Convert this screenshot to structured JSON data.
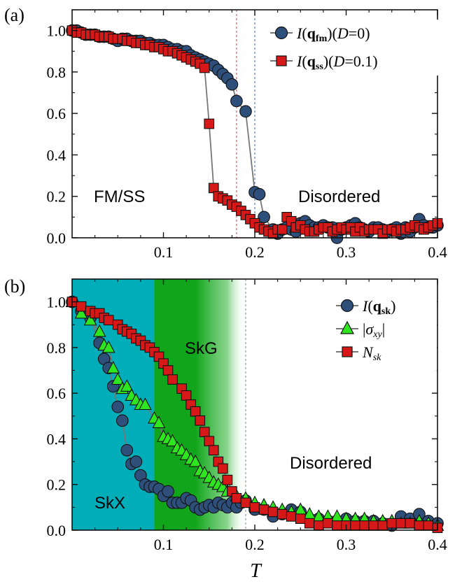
{
  "figure": {
    "xlabel": "T",
    "colors": {
      "circle_fill": "#2e4f7a",
      "square_fill": "#d61818",
      "triangle_fill": "#2ee51f",
      "line": "#777777",
      "skx_region": "#00adb8",
      "skg_region": "#11a51b",
      "vline_red": "#e05a5a",
      "vline_blue": "#5a7fc0",
      "vline_gray": "#9a9a9a"
    }
  },
  "chart_data": [
    {
      "type": "line",
      "panel_label": "(a)",
      "xlim": [
        0.0,
        0.4
      ],
      "ylim": [
        0.0,
        1.1
      ],
      "x_ticks": [
        0.1,
        0.2,
        0.3,
        0.4
      ],
      "y_ticks": [
        0.0,
        0.2,
        0.4,
        0.6,
        0.8,
        1.0
      ],
      "x_tick_labels": [
        "0.1",
        "0.2",
        "0.3",
        "0.4"
      ],
      "y_tick_labels": [
        "0.0",
        "0.2",
        "0.4",
        "0.6",
        "0.8",
        "1.0"
      ],
      "legend_position": "top-right",
      "vlines": [
        0.18,
        0.2
      ],
      "region_labels": [
        "FM/SS",
        "Disordered"
      ],
      "series": [
        {
          "name": "I(q_fm)(D=0)",
          "marker": "circle",
          "x": [
            0.0,
            0.005,
            0.01,
            0.015,
            0.02,
            0.025,
            0.03,
            0.035,
            0.04,
            0.045,
            0.05,
            0.055,
            0.06,
            0.065,
            0.07,
            0.075,
            0.08,
            0.085,
            0.09,
            0.095,
            0.1,
            0.105,
            0.11,
            0.115,
            0.12,
            0.125,
            0.13,
            0.135,
            0.14,
            0.145,
            0.15,
            0.155,
            0.16,
            0.165,
            0.17,
            0.175,
            0.18,
            0.19,
            0.2,
            0.205,
            0.21,
            0.22,
            0.225,
            0.23,
            0.235,
            0.24,
            0.245,
            0.25,
            0.255,
            0.26,
            0.265,
            0.27,
            0.275,
            0.28,
            0.285,
            0.29,
            0.295,
            0.3,
            0.305,
            0.31,
            0.315,
            0.32,
            0.325,
            0.33,
            0.335,
            0.34,
            0.345,
            0.35,
            0.355,
            0.36,
            0.365,
            0.37,
            0.375,
            0.38,
            0.385,
            0.39,
            0.395,
            0.4
          ],
          "y": [
            1.0,
            1.0,
            0.99,
            0.98,
            0.98,
            0.98,
            0.97,
            0.97,
            0.97,
            0.96,
            0.95,
            0.96,
            0.96,
            0.95,
            0.95,
            0.95,
            0.94,
            0.94,
            0.93,
            0.93,
            0.93,
            0.92,
            0.91,
            0.91,
            0.9,
            0.9,
            0.88,
            0.87,
            0.86,
            0.85,
            0.84,
            0.83,
            0.81,
            0.79,
            0.77,
            0.74,
            0.66,
            0.61,
            0.22,
            0.21,
            0.1,
            0.04,
            0.02,
            0.04,
            0.05,
            0.04,
            0.03,
            0.07,
            0.08,
            0.06,
            0.05,
            0.05,
            0.06,
            0.05,
            0.05,
            0.0,
            0.04,
            0.05,
            0.06,
            0.07,
            0.05,
            0.04,
            0.03,
            0.05,
            0.05,
            0.04,
            0.03,
            0.04,
            0.05,
            0.02,
            0.05,
            0.03,
            0.05,
            0.09,
            0.06,
            0.05,
            0.05,
            0.06
          ]
        },
        {
          "name": "I(q_ss)(D=0.1)",
          "marker": "square",
          "x": [
            0.0,
            0.005,
            0.01,
            0.015,
            0.02,
            0.025,
            0.03,
            0.035,
            0.04,
            0.045,
            0.05,
            0.055,
            0.06,
            0.065,
            0.07,
            0.075,
            0.08,
            0.085,
            0.09,
            0.095,
            0.1,
            0.105,
            0.11,
            0.115,
            0.12,
            0.125,
            0.13,
            0.135,
            0.14,
            0.145,
            0.15,
            0.155,
            0.16,
            0.165,
            0.17,
            0.175,
            0.18,
            0.185,
            0.19,
            0.195,
            0.2,
            0.205,
            0.21,
            0.215,
            0.22,
            0.225,
            0.23,
            0.235,
            0.24,
            0.245,
            0.25,
            0.255,
            0.26,
            0.265,
            0.27,
            0.275,
            0.28,
            0.285,
            0.29,
            0.295,
            0.3,
            0.305,
            0.31,
            0.315,
            0.32,
            0.325,
            0.33,
            0.335,
            0.34,
            0.345,
            0.35,
            0.355,
            0.36,
            0.365,
            0.37,
            0.375,
            0.38,
            0.385,
            0.39,
            0.395,
            0.4
          ],
          "y": [
            1.0,
            0.99,
            0.99,
            0.98,
            0.98,
            0.98,
            0.97,
            0.97,
            0.97,
            0.96,
            0.96,
            0.96,
            0.95,
            0.95,
            0.94,
            0.94,
            0.93,
            0.93,
            0.92,
            0.92,
            0.91,
            0.9,
            0.9,
            0.89,
            0.88,
            0.87,
            0.86,
            0.85,
            0.84,
            0.82,
            0.55,
            0.24,
            0.2,
            0.19,
            0.18,
            0.16,
            0.15,
            0.13,
            0.11,
            0.09,
            0.07,
            0.05,
            0.04,
            0.03,
            0.02,
            0.04,
            0.04,
            0.1,
            0.08,
            0.05,
            0.06,
            0.04,
            0.03,
            0.03,
            0.04,
            0.05,
            0.05,
            0.03,
            0.04,
            0.05,
            0.04,
            0.05,
            0.03,
            0.05,
            0.03,
            0.04,
            0.04,
            0.04,
            0.02,
            0.04,
            0.04,
            0.03,
            0.04,
            0.04,
            0.05,
            0.06,
            0.05,
            0.04,
            0.05,
            0.06,
            0.07
          ]
        }
      ]
    },
    {
      "type": "line",
      "panel_label": "(b)",
      "xlim": [
        0.0,
        0.4
      ],
      "ylim": [
        0.0,
        1.1
      ],
      "x_ticks": [
        0.1,
        0.2,
        0.3,
        0.4
      ],
      "y_ticks": [
        0.0,
        0.2,
        0.4,
        0.6,
        0.8,
        1.0
      ],
      "x_tick_labels": [
        "0.1",
        "0.2",
        "0.3",
        "0.4"
      ],
      "y_tick_labels": [
        "0.0",
        "0.2",
        "0.4",
        "0.6",
        "0.8",
        "1.0"
      ],
      "xlabel": "T",
      "legend_position": "top-right",
      "vlines": [
        0.19
      ],
      "regions": [
        {
          "name": "SkX",
          "x_range": [
            0.0,
            0.09
          ]
        },
        {
          "name": "SkG",
          "x_range": [
            0.09,
            0.19
          ]
        }
      ],
      "region_labels": [
        "SkX",
        "SkG",
        "Disordered"
      ],
      "series": [
        {
          "name": "I(q_sk)",
          "marker": "circle",
          "x": [
            0.0,
            0.01,
            0.02,
            0.03,
            0.035,
            0.04,
            0.045,
            0.05,
            0.055,
            0.06,
            0.065,
            0.07,
            0.075,
            0.08,
            0.085,
            0.09,
            0.095,
            0.1,
            0.105,
            0.11,
            0.115,
            0.12,
            0.125,
            0.13,
            0.135,
            0.14,
            0.145,
            0.15,
            0.155,
            0.16,
            0.165,
            0.17,
            0.175,
            0.18,
            0.185,
            0.19,
            0.2,
            0.21,
            0.22,
            0.23,
            0.24,
            0.25,
            0.26,
            0.27,
            0.28,
            0.29,
            0.3,
            0.31,
            0.32,
            0.33,
            0.34,
            0.35,
            0.36,
            0.37,
            0.38,
            0.39,
            0.4
          ],
          "y": [
            1.0,
            0.96,
            0.93,
            0.82,
            0.75,
            0.71,
            0.63,
            0.54,
            0.48,
            0.35,
            0.29,
            0.3,
            0.24,
            0.2,
            0.19,
            0.19,
            0.18,
            0.15,
            0.17,
            0.12,
            0.12,
            0.12,
            0.14,
            0.13,
            0.1,
            0.09,
            0.1,
            0.11,
            0.1,
            0.12,
            0.11,
            0.1,
            0.12,
            0.1,
            0.12,
            0.13,
            0.09,
            0.09,
            0.06,
            0.07,
            0.09,
            0.08,
            0.05,
            0.05,
            0.04,
            0.04,
            0.05,
            0.04,
            0.04,
            0.04,
            0.03,
            0.02,
            0.06,
            0.05,
            0.07,
            0.04,
            0.03
          ]
        },
        {
          "name": "|σ_xy|",
          "marker": "triangle",
          "x": [
            0.0,
            0.01,
            0.02,
            0.03,
            0.035,
            0.04,
            0.045,
            0.05,
            0.055,
            0.06,
            0.065,
            0.07,
            0.075,
            0.08,
            0.09,
            0.095,
            0.1,
            0.105,
            0.11,
            0.115,
            0.12,
            0.125,
            0.13,
            0.135,
            0.14,
            0.145,
            0.15,
            0.155,
            0.16,
            0.165,
            0.17,
            0.18,
            0.19,
            0.2,
            0.21,
            0.22,
            0.23,
            0.24,
            0.25,
            0.26,
            0.27,
            0.28,
            0.29,
            0.3,
            0.31,
            0.32,
            0.33,
            0.34,
            0.35,
            0.36,
            0.37,
            0.38,
            0.39,
            0.4
          ],
          "y": [
            1.0,
            0.95,
            0.92,
            0.87,
            0.81,
            0.8,
            0.71,
            0.66,
            0.62,
            0.63,
            0.59,
            0.57,
            0.55,
            0.55,
            0.49,
            0.47,
            0.41,
            0.4,
            0.39,
            0.36,
            0.35,
            0.33,
            0.31,
            0.3,
            0.26,
            0.25,
            0.23,
            0.21,
            0.2,
            0.19,
            0.17,
            0.15,
            0.14,
            0.12,
            0.11,
            0.1,
            0.09,
            0.08,
            0.09,
            0.07,
            0.06,
            0.06,
            0.06,
            0.05,
            0.05,
            0.05,
            0.04,
            0.04,
            0.04,
            0.03,
            0.03,
            0.04,
            0.03,
            0.02
          ]
        },
        {
          "name": "N_sk",
          "marker": "square",
          "x": [
            0.0,
            0.01,
            0.02,
            0.025,
            0.03,
            0.035,
            0.04,
            0.05,
            0.055,
            0.06,
            0.065,
            0.07,
            0.075,
            0.08,
            0.085,
            0.09,
            0.095,
            0.1,
            0.105,
            0.11,
            0.12,
            0.125,
            0.13,
            0.135,
            0.14,
            0.145,
            0.15,
            0.155,
            0.16,
            0.165,
            0.17,
            0.175,
            0.18,
            0.19,
            0.2,
            0.21,
            0.22,
            0.23,
            0.24,
            0.25,
            0.26,
            0.27,
            0.28,
            0.29,
            0.3,
            0.31,
            0.32,
            0.33,
            0.34,
            0.35,
            0.36,
            0.37,
            0.38,
            0.39,
            0.4
          ],
          "y": [
            1.0,
            0.98,
            0.96,
            0.95,
            0.95,
            0.93,
            0.92,
            0.9,
            0.88,
            0.87,
            0.86,
            0.84,
            0.83,
            0.81,
            0.8,
            0.78,
            0.76,
            0.73,
            0.7,
            0.66,
            0.62,
            0.59,
            0.55,
            0.52,
            0.48,
            0.43,
            0.39,
            0.35,
            0.3,
            0.27,
            0.22,
            0.17,
            0.14,
            0.12,
            0.1,
            0.09,
            0.08,
            0.07,
            0.06,
            0.05,
            0.03,
            0.02,
            0.03,
            0.02,
            0.02,
            0.02,
            0.02,
            0.02,
            0.02,
            0.03,
            0.03,
            0.03,
            0.02,
            0.02,
            0.01
          ]
        }
      ]
    }
  ]
}
